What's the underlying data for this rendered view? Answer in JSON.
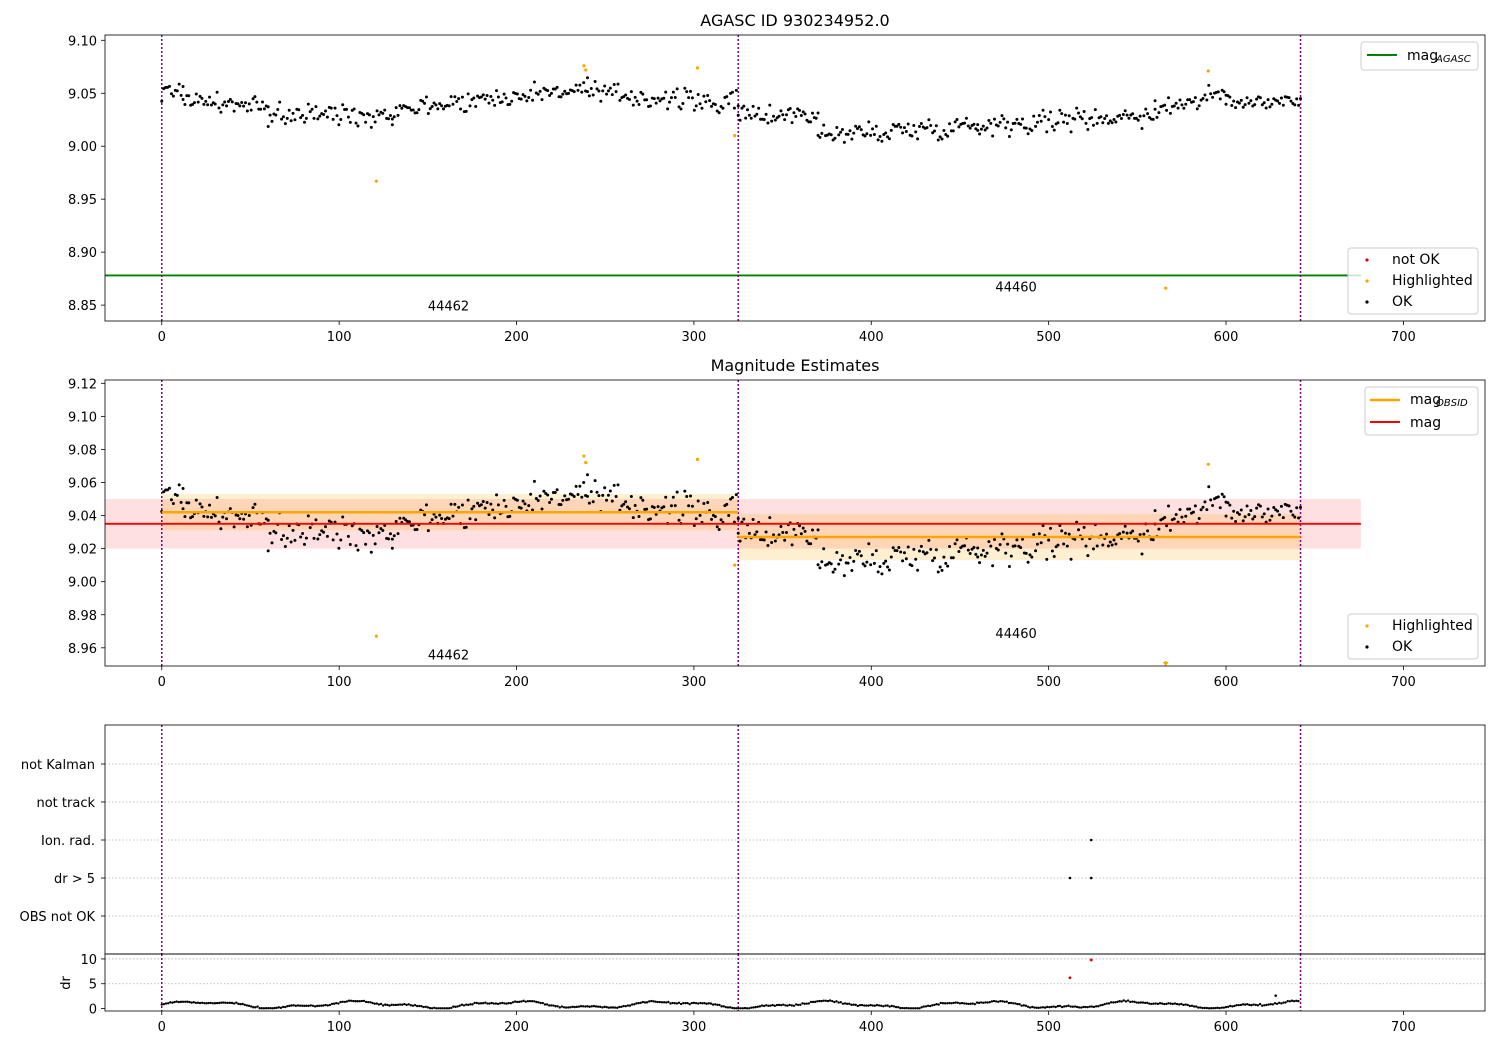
{
  "chart_data": [
    {
      "type": "scatter",
      "title": "AGASC ID 930234952.0",
      "xlim": [
        -32,
        746
      ],
      "ylim": [
        8.835,
        9.105
      ],
      "xticks": [
        "0",
        "100",
        "200",
        "300",
        "400",
        "500",
        "600",
        "700"
      ],
      "yticks": [
        "8.85",
        "8.90",
        "8.95",
        "9.00",
        "9.05",
        "9.10"
      ],
      "obsid_boundaries": [
        0,
        325,
        642
      ],
      "annotations": [
        {
          "text": "44462",
          "x": 150,
          "y": 8.845
        },
        {
          "text": "44460",
          "x": 470,
          "y": 8.863
        }
      ],
      "mag_agasc": 8.878,
      "legend_upper": {
        "items": [
          {
            "label": "mag",
            "sub": "AGASC"
          }
        ],
        "placement": "upper right"
      },
      "legend_lower": {
        "items": [
          "not OK",
          "Highlighted",
          "OK"
        ],
        "placement": "lower right"
      },
      "series": {
        "OK": {
          "segments": [
            {
              "x0": 0,
              "x1": 12,
              "y0": 9.05,
              "y1": 9.055,
              "n": 12,
              "noise": 0.007
            },
            {
              "x0": 12,
              "x1": 60,
              "y0": 9.045,
              "y1": 9.035,
              "n": 46,
              "noise": 0.008
            },
            {
              "x0": 60,
              "x1": 130,
              "y0": 9.03,
              "y1": 9.03,
              "n": 66,
              "noise": 0.009
            },
            {
              "x0": 130,
              "x1": 240,
              "y0": 9.035,
              "y1": 9.055,
              "n": 104,
              "noise": 0.008
            },
            {
              "x0": 240,
              "x1": 325,
              "y0": 9.05,
              "y1": 9.04,
              "n": 80,
              "noise": 0.009
            },
            {
              "x0": 325,
              "x1": 370,
              "y0": 9.03,
              "y1": 9.03,
              "n": 44,
              "noise": 0.008
            },
            {
              "x0": 370,
              "x1": 460,
              "y0": 9.01,
              "y1": 9.02,
              "n": 86,
              "noise": 0.009
            },
            {
              "x0": 460,
              "x1": 560,
              "y0": 9.02,
              "y1": 9.03,
              "n": 96,
              "noise": 0.009
            },
            {
              "x0": 560,
              "x1": 600,
              "y0": 9.035,
              "y1": 9.05,
              "n": 38,
              "noise": 0.008
            },
            {
              "x0": 600,
              "x1": 642,
              "y0": 9.04,
              "y1": 9.045,
              "n": 40,
              "noise": 0.007
            }
          ]
        },
        "Highlighted": {
          "points": [
            [
              121,
              8.967
            ],
            [
              238,
              9.076
            ],
            [
              239,
              9.072
            ],
            [
              302,
              9.074
            ],
            [
              323,
              9.01
            ],
            [
              566,
              8.866
            ],
            [
              590,
              9.071
            ]
          ]
        },
        "not OK": {
          "points": []
        }
      }
    },
    {
      "type": "scatter",
      "title": "Magnitude Estimates",
      "xlim": [
        -32,
        746
      ],
      "ylim": [
        8.949,
        9.122
      ],
      "xticks": [
        "0",
        "100",
        "200",
        "300",
        "400",
        "500",
        "600",
        "700"
      ],
      "yticks": [
        "8.96",
        "8.98",
        "9.00",
        "9.02",
        "9.04",
        "9.06",
        "9.08",
        "9.10",
        "9.12"
      ],
      "obsid_boundaries": [
        0,
        325,
        642
      ],
      "annotations": [
        {
          "text": "44462",
          "x": 150,
          "y": 8.953
        },
        {
          "text": "44460",
          "x": 470,
          "y": 8.966
        }
      ],
      "mag": {
        "value": 9.035,
        "band": [
          9.02,
          9.05
        ],
        "x0": -32,
        "x1": 676
      },
      "mag_obsid": [
        {
          "x0": 0,
          "x1": 325,
          "value": 9.042,
          "band": [
            9.031,
            9.053
          ]
        },
        {
          "x0": 325,
          "x1": 642,
          "value": 9.027,
          "band": [
            9.013,
            9.041
          ]
        }
      ],
      "legend_upper": {
        "items": [
          {
            "label": "mag",
            "sub": "OBSID"
          },
          {
            "label": "mag",
            "sub": ""
          }
        ],
        "placement": "upper right"
      },
      "legend_lower": {
        "items": [
          "Highlighted",
          "OK"
        ],
        "placement": "lower right"
      },
      "series": {
        "Highlighted": {
          "points": [
            [
              121,
              8.967
            ],
            [
              238,
              9.076
            ],
            [
              239,
              9.072
            ],
            [
              302,
              9.074
            ],
            [
              323,
              9.01
            ],
            [
              566,
              8.951
            ],
            [
              590,
              9.071
            ]
          ]
        }
      }
    },
    {
      "type": "scatter",
      "title": "",
      "xlim": [
        -32,
        746
      ],
      "categories": [
        "not Kalman",
        "not track",
        "Ion. rad.",
        "dr > 5",
        "OBS not OK"
      ],
      "obsid_boundaries": [
        0,
        325,
        642
      ],
      "flag_points": [
        {
          "category": "Ion. rad.",
          "x": 524
        },
        {
          "category": "dr > 5",
          "x": 512
        },
        {
          "category": "dr > 5",
          "x": 524
        }
      ]
    },
    {
      "type": "scatter",
      "title": "",
      "ylabel": "dr",
      "xlim": [
        -32,
        746
      ],
      "ylim": [
        -0.5,
        11
      ],
      "xticks": [
        "0",
        "100",
        "200",
        "300",
        "400",
        "500",
        "600",
        "700"
      ],
      "yticks": [
        "0",
        "5",
        "10"
      ],
      "obsid_boundaries": [
        0,
        325,
        642
      ],
      "not_ok_points": [
        [
          512,
          6.2
        ],
        [
          524,
          9.8
        ]
      ],
      "ok_points": [
        [
          628,
          2.6
        ]
      ]
    }
  ],
  "colors": {
    "ok": "#000000",
    "highlighted": "#ffa500",
    "not_ok": "#e00000",
    "agasc": "#008000",
    "mag": "#ff0000",
    "mag_obsid": "#ffa500",
    "boundary": "#800080"
  }
}
